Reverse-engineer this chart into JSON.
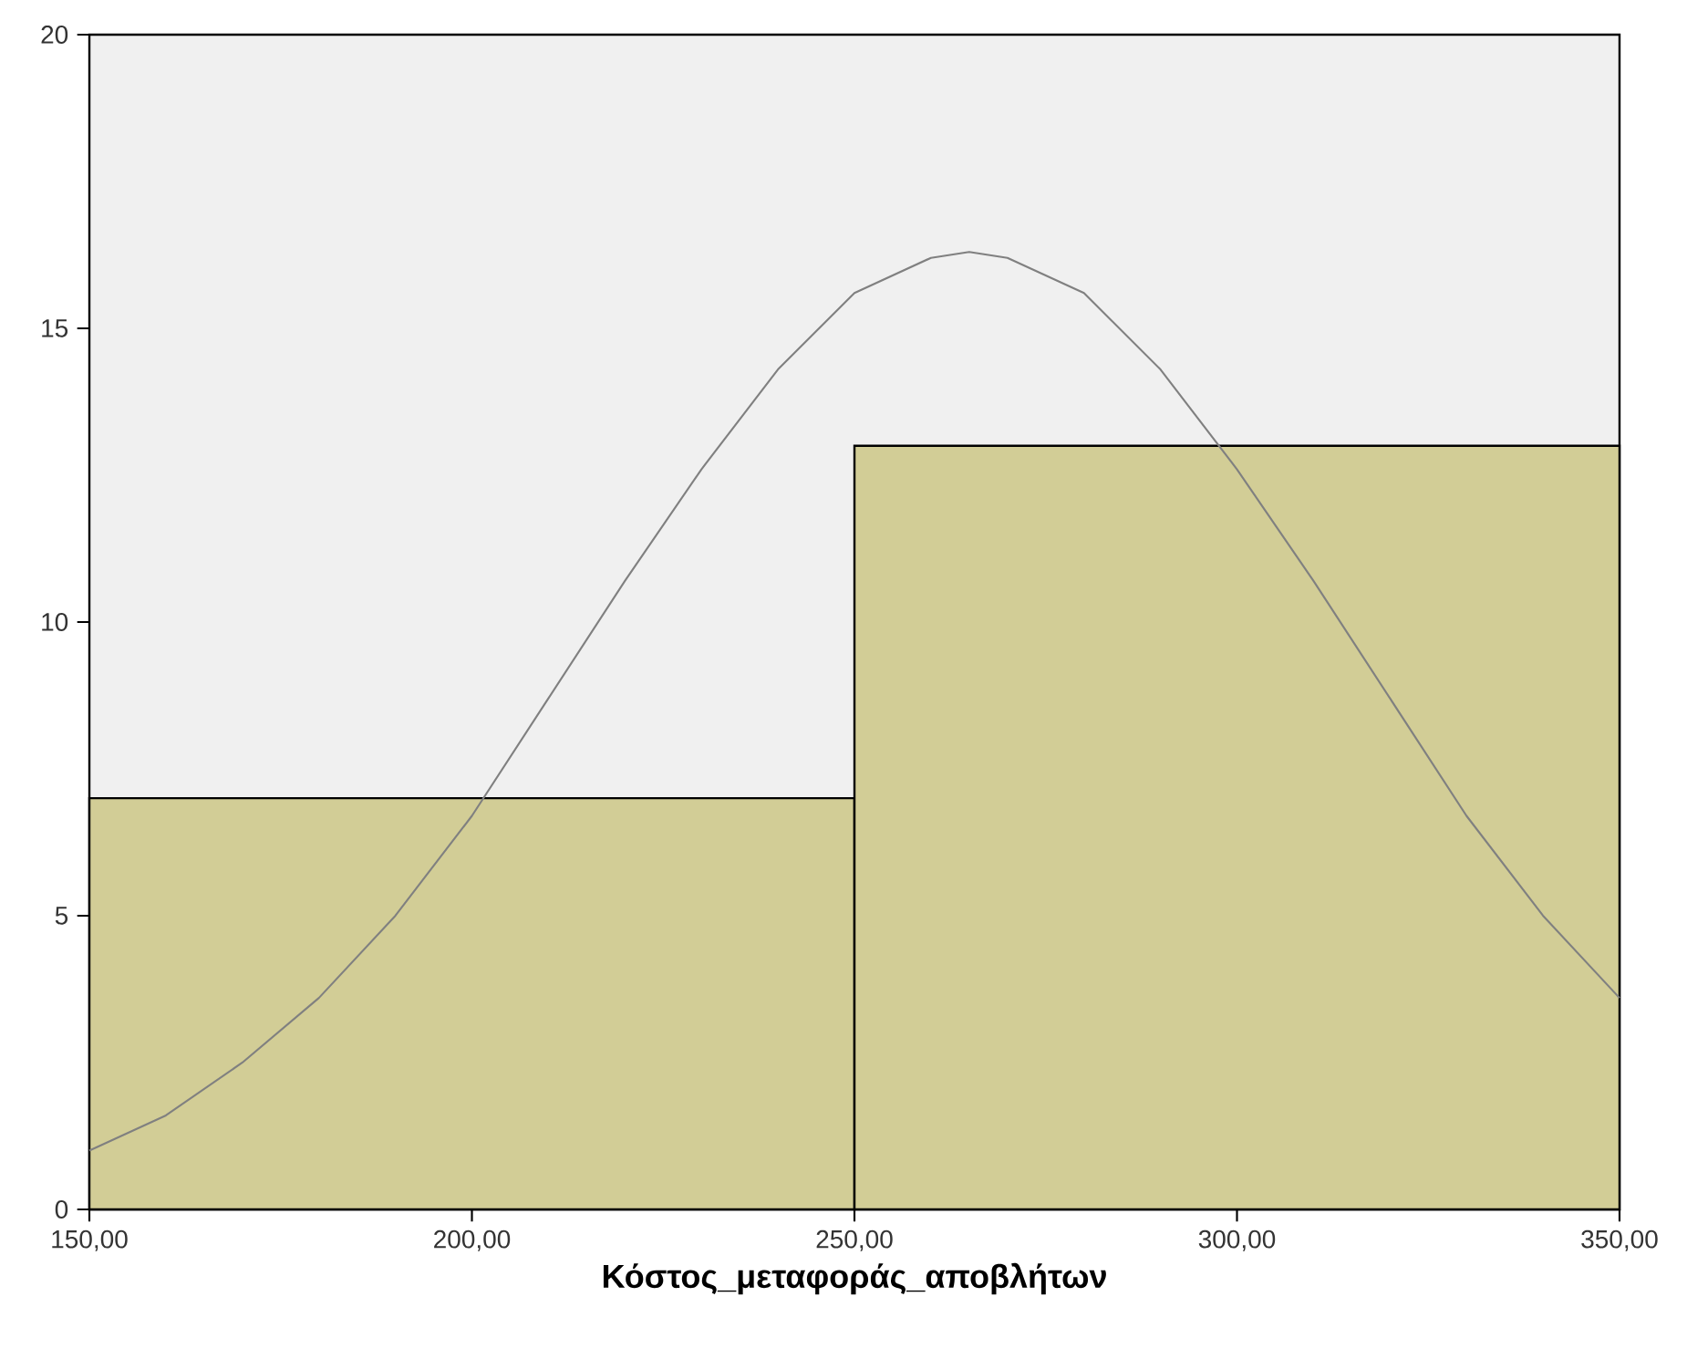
{
  "chart_data": {
    "type": "histogram",
    "xlabel": "Κόστος_μεταφοράς_αποβλήτων",
    "bins": [
      150,
      250,
      350
    ],
    "values": [
      7,
      13
    ],
    "color": "#d2cd96",
    "series": [
      {
        "type": "line",
        "color": "#808080",
        "x": [
          150,
          160,
          170,
          180,
          190,
          200,
          210,
          220,
          230,
          240,
          250,
          260,
          265,
          270,
          280,
          290,
          300,
          310,
          320,
          330,
          340,
          350
        ],
        "values": [
          1.0,
          1.6,
          2.5,
          3.6,
          5.0,
          6.7,
          8.7,
          10.7,
          12.6,
          14.3,
          15.6,
          16.2,
          16.3,
          16.2,
          15.6,
          14.3,
          12.6,
          10.7,
          8.7,
          6.7,
          5.0,
          3.6
        ]
      }
    ],
    "xlim": [
      150,
      350
    ],
    "ylim": [
      0,
      20
    ],
    "xticks": [
      {
        "value": 150,
        "label": "150,00"
      },
      {
        "value": 200,
        "label": "200,00"
      },
      {
        "value": 250,
        "label": "250,00"
      },
      {
        "value": 300,
        "label": "300,00"
      },
      {
        "value": 350,
        "label": "350,00"
      }
    ],
    "yticks": [
      0,
      5,
      10,
      15,
      20
    ]
  }
}
